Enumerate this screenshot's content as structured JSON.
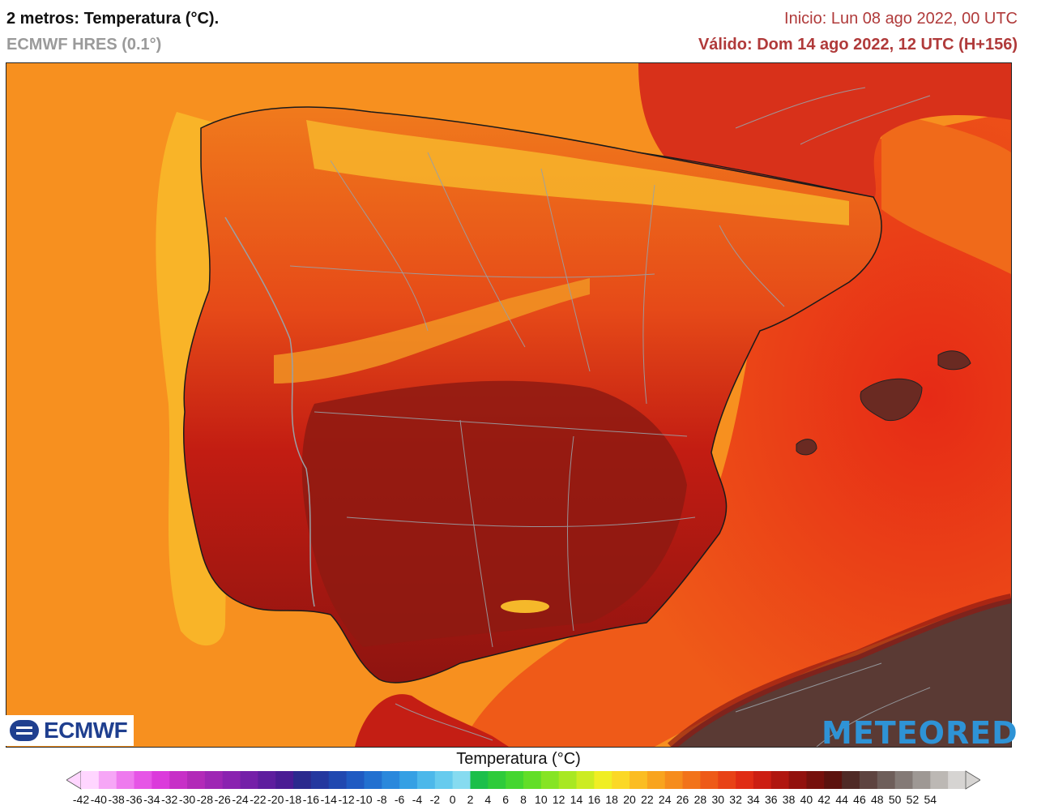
{
  "header": {
    "title": "2 metros: Temperatura (°C).",
    "model": "ECMWF HRES (0.1°)",
    "init": "Inicio: Lun 08 ago 2022, 00 UTC",
    "valid": "Válido: Dom 14 ago 2022, 12 UTC (H+156)"
  },
  "logos": {
    "left": "ECMWF",
    "right": "METEORED"
  },
  "legend": {
    "title": "Temperatura (°C)",
    "ticks": [
      "-42",
      "-40",
      "-38",
      "-36",
      "-34",
      "-32",
      "-30",
      "-28",
      "-26",
      "-24",
      "-22",
      "-20",
      "-18",
      "-16",
      "-14",
      "-12",
      "-10",
      "-8",
      "-6",
      "-4",
      "-2",
      "0",
      "2",
      "4",
      "6",
      "8",
      "10",
      "12",
      "14",
      "16",
      "18",
      "20",
      "22",
      "24",
      "26",
      "28",
      "30",
      "32",
      "34",
      "36",
      "38",
      "40",
      "42",
      "44",
      "46",
      "48",
      "50",
      "52",
      "54"
    ],
    "colors": [
      "#ffd6ff",
      "#f6a6f6",
      "#ee7aee",
      "#e655e6",
      "#db3adb",
      "#c730c7",
      "#b22ab8",
      "#9e26b4",
      "#8a22b0",
      "#7420a8",
      "#5e1e9e",
      "#4a1c94",
      "#2b2a8e",
      "#24389f",
      "#2048b0",
      "#1f5ac2",
      "#2270d0",
      "#2a88dc",
      "#35a0e4",
      "#4cb8ea",
      "#66cbee",
      "#86dbf0",
      "#1cbf4a",
      "#2ecb3a",
      "#44d630",
      "#62de28",
      "#86e424",
      "#a8e822",
      "#ccec22",
      "#f0ee24",
      "#fbd826",
      "#fbbd22",
      "#f9a41e",
      "#f68c1c",
      "#f2731a",
      "#ee5a18",
      "#e84216",
      "#e02c14",
      "#cc1e12",
      "#b0160f",
      "#92110d",
      "#76100c",
      "#5c120e",
      "#4f2a26",
      "#5e4440",
      "#6e5e5a",
      "#847a76",
      "#9e9894",
      "#bcb8b4",
      "#d6d4d2"
    ]
  },
  "map": {
    "colors": {
      "ocean_cool": "#f99a2a",
      "ocean_mid": "#f27019",
      "coast_yellow": "#f9c02a",
      "med_warm": "#e8341a",
      "land_hot": "#c81e14",
      "land_very_hot": "#8e1a12",
      "mountains_cool": "#f5a623",
      "africa_hot": "#5a3a34",
      "borders": "#9aa0a6"
    }
  }
}
